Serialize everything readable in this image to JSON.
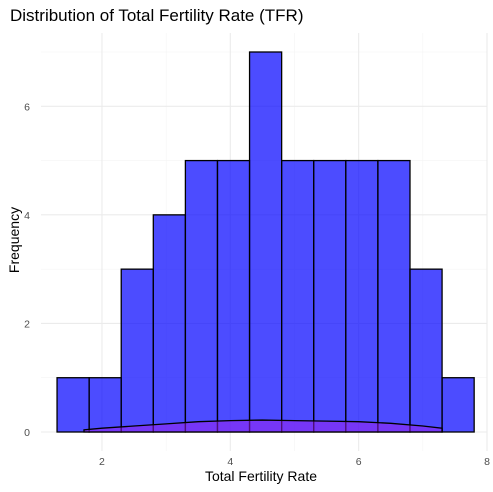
{
  "chart_data": {
    "type": "bar",
    "subtype": "histogram-with-density",
    "title": "Distribution of Total Fertility Rate (TFR)",
    "xlabel": "Total Fertility Rate",
    "ylabel": "Frequency",
    "xlim": [
      1.05,
      8.0
    ],
    "ylim": [
      -0.35,
      7.35
    ],
    "x_ticks": [
      2,
      4,
      6,
      8
    ],
    "y_ticks": [
      0,
      2,
      4,
      6
    ],
    "bin_width": 0.5,
    "bins": [
      {
        "start": 1.3,
        "end": 1.8,
        "count": 1
      },
      {
        "start": 1.8,
        "end": 2.3,
        "count": 1
      },
      {
        "start": 2.3,
        "end": 2.8,
        "count": 3
      },
      {
        "start": 2.8,
        "end": 3.3,
        "count": 4
      },
      {
        "start": 3.3,
        "end": 3.8,
        "count": 5
      },
      {
        "start": 3.8,
        "end": 4.3,
        "count": 5
      },
      {
        "start": 4.3,
        "end": 4.8,
        "count": 7
      },
      {
        "start": 4.8,
        "end": 5.3,
        "count": 5
      },
      {
        "start": 5.3,
        "end": 5.8,
        "count": 5
      },
      {
        "start": 5.8,
        "end": 6.3,
        "count": 5
      },
      {
        "start": 6.3,
        "end": 6.8,
        "count": 5
      },
      {
        "start": 6.8,
        "end": 7.3,
        "count": 3
      },
      {
        "start": 7.3,
        "end": 7.8,
        "count": 1
      }
    ],
    "density": {
      "x": [
        1.72,
        2.0,
        2.5,
        3.0,
        3.5,
        4.0,
        4.5,
        5.0,
        5.5,
        6.0,
        6.5,
        7.0,
        7.3
      ],
      "y": [
        0.04,
        0.07,
        0.11,
        0.15,
        0.19,
        0.21,
        0.22,
        0.21,
        0.2,
        0.19,
        0.16,
        0.11,
        0.07
      ]
    },
    "bar_color": "#0000ff",
    "density_color": "#a020f0",
    "grid": true,
    "legend": "none"
  }
}
